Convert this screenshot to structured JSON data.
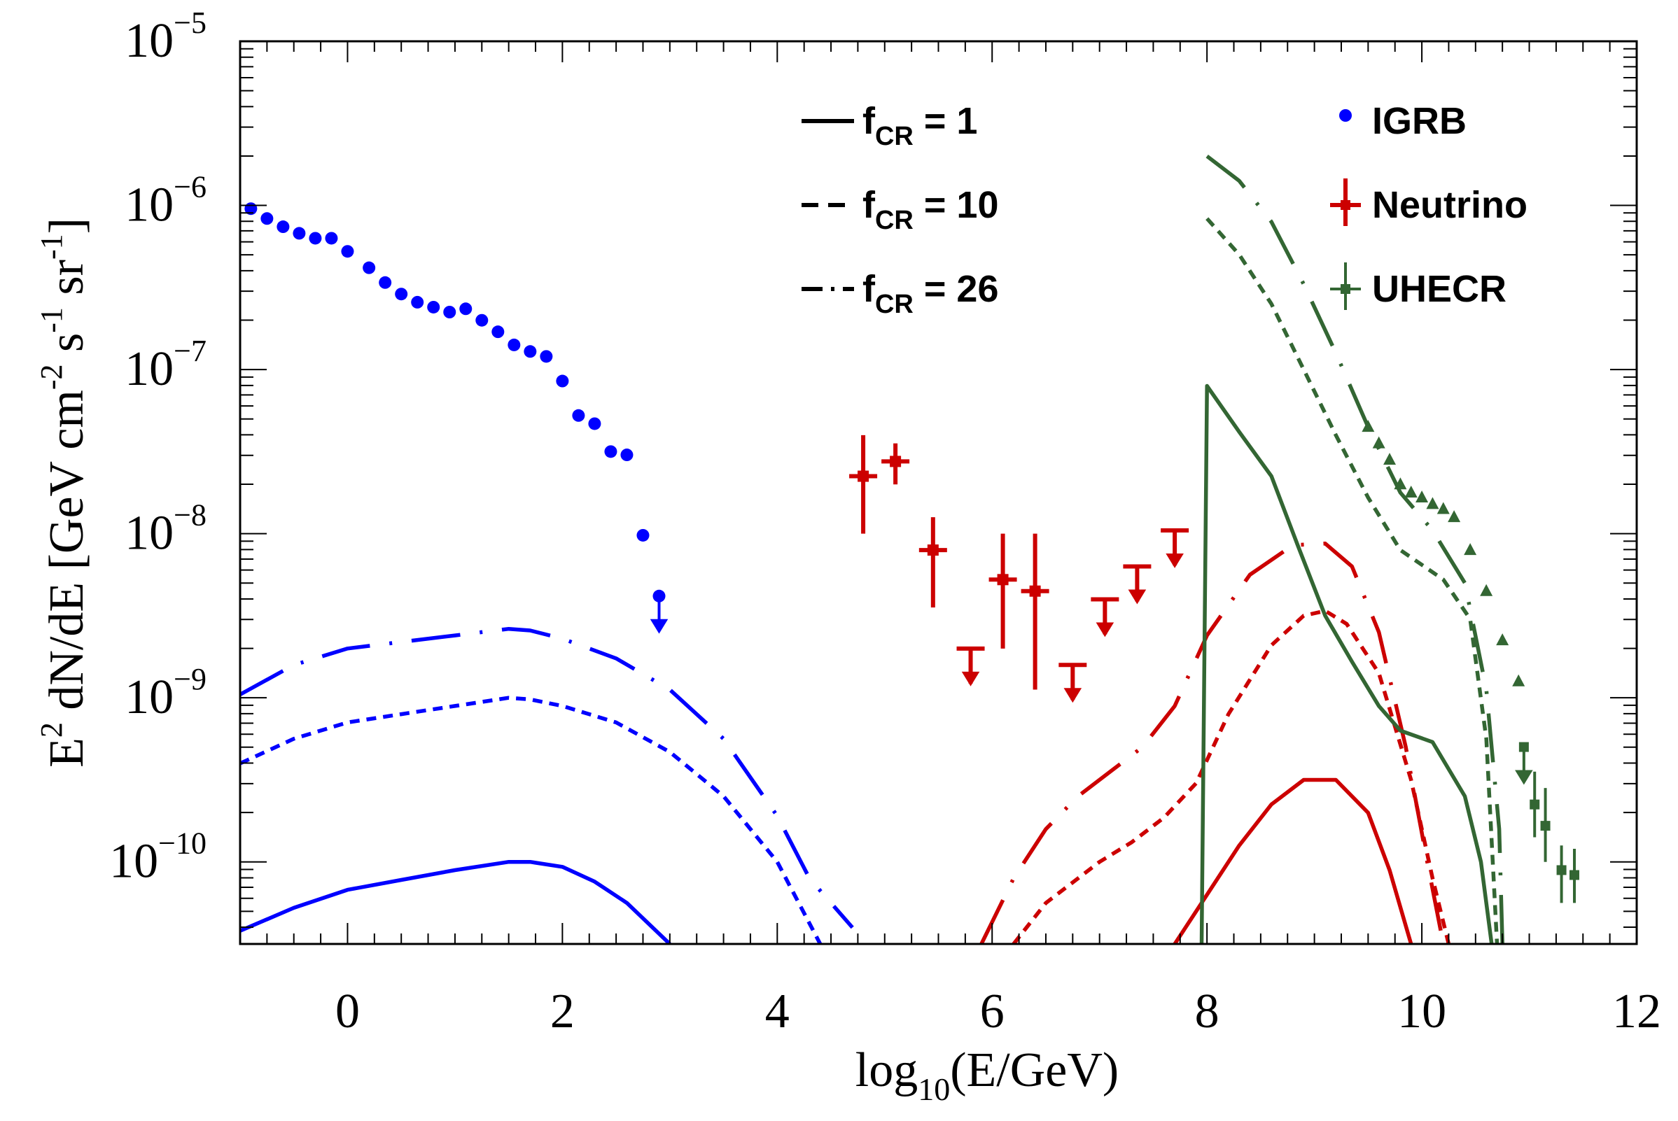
{
  "chart_data": {
    "type": "line",
    "title": "",
    "xlabel": {
      "base": "log",
      "sub": "10",
      "rest": "(E/GeV)"
    },
    "ylabel": {
      "p1": "E",
      "p1sup": "2",
      "p2": " dN/dE [GeV cm",
      "p2sup": "-2",
      "p3": " s",
      "p3sup": "-1",
      "p4": " sr",
      "p4sup": "-1",
      "p5": "]"
    },
    "xlim": [
      -1,
      12
    ],
    "ylim_log10": [
      -10.5,
      -5
    ],
    "x_ticks": [
      {
        "v": 0,
        "label": "0"
      },
      {
        "v": 2,
        "label": "2"
      },
      {
        "v": 4,
        "label": "4"
      },
      {
        "v": 6,
        "label": "6"
      },
      {
        "v": 8,
        "label": "8"
      },
      {
        "v": 10,
        "label": "10"
      },
      {
        "v": 12,
        "label": "12"
      }
    ],
    "y_ticks": [
      {
        "v": -10,
        "base": "10",
        "exp": "−10"
      },
      {
        "v": -9,
        "base": "10",
        "exp": "−9"
      },
      {
        "v": -8,
        "base": "10",
        "exp": "−8"
      },
      {
        "v": -7,
        "base": "10",
        "exp": "−7"
      },
      {
        "v": -6,
        "base": "10",
        "exp": "−6"
      },
      {
        "v": -5,
        "base": "10",
        "exp": "−5"
      }
    ],
    "colors": {
      "gamma": "#0000ff",
      "neutrino": "#cc0000",
      "uhecr": "#336633"
    },
    "style_legend": [
      {
        "style": "solid",
        "label": "f",
        "sub": "CR",
        "rest": " = 1"
      },
      {
        "style": "dashed",
        "label": "f",
        "sub": "CR",
        "rest": " = 10"
      },
      {
        "style": "dashdot",
        "label": "f",
        "sub": "CR",
        "rest": " = 26"
      }
    ],
    "data_legend": [
      {
        "key": "gamma",
        "marker": "dot",
        "label": "IGRB"
      },
      {
        "key": "neutrino",
        "marker": "cross",
        "label": "Neutrino"
      },
      {
        "key": "uhecr",
        "marker": "cross-thin",
        "label": "UHECR"
      }
    ],
    "series": [
      {
        "name": "gamma fCR=1",
        "color": "gamma",
        "style": "solid",
        "points": [
          [
            -1,
            -10.42
          ],
          [
            -0.5,
            -10.28
          ],
          [
            0,
            -10.17
          ],
          [
            0.5,
            -10.11
          ],
          [
            1,
            -10.05
          ],
          [
            1.5,
            -10.0
          ],
          [
            1.7,
            -10.0
          ],
          [
            2,
            -10.03
          ],
          [
            2.3,
            -10.12
          ],
          [
            2.6,
            -10.25
          ],
          [
            3.0,
            -10.5
          ]
        ]
      },
      {
        "name": "gamma fCR=10",
        "color": "gamma",
        "style": "dashed",
        "points": [
          [
            -1,
            -9.4
          ],
          [
            -0.5,
            -9.25
          ],
          [
            0,
            -9.15
          ],
          [
            0.5,
            -9.1
          ],
          [
            1,
            -9.05
          ],
          [
            1.5,
            -9.0
          ],
          [
            1.7,
            -9.01
          ],
          [
            2,
            -9.05
          ],
          [
            2.5,
            -9.15
          ],
          [
            3,
            -9.33
          ],
          [
            3.5,
            -9.6
          ],
          [
            4,
            -10.0
          ],
          [
            4.4,
            -10.5
          ]
        ]
      },
      {
        "name": "gamma fCR=26",
        "color": "gamma",
        "style": "dashdot",
        "points": [
          [
            -1,
            -8.98
          ],
          [
            -0.5,
            -8.8
          ],
          [
            0,
            -8.7
          ],
          [
            0.5,
            -8.66
          ],
          [
            1,
            -8.62
          ],
          [
            1.5,
            -8.58
          ],
          [
            1.7,
            -8.59
          ],
          [
            2,
            -8.64
          ],
          [
            2.5,
            -8.76
          ],
          [
            3,
            -8.95
          ],
          [
            3.5,
            -9.25
          ],
          [
            4,
            -9.72
          ],
          [
            4.3,
            -10.1
          ],
          [
            4.7,
            -10.4
          ]
        ]
      },
      {
        "name": "neutrino fCR=1",
        "color": "neutrino",
        "style": "solid",
        "points": [
          [
            7.7,
            -10.5
          ],
          [
            8,
            -10.2
          ],
          [
            8.3,
            -9.9
          ],
          [
            8.6,
            -9.65
          ],
          [
            8.9,
            -9.5
          ],
          [
            9.2,
            -9.5
          ],
          [
            9.5,
            -9.7
          ],
          [
            9.7,
            -10.05
          ],
          [
            9.9,
            -10.5
          ]
        ]
      },
      {
        "name": "neutrino fCR=10",
        "color": "neutrino",
        "style": "dashed",
        "points": [
          [
            6.2,
            -10.5
          ],
          [
            6.5,
            -10.25
          ],
          [
            6.8,
            -10.1
          ],
          [
            7,
            -10.0
          ],
          [
            7.3,
            -9.88
          ],
          [
            7.6,
            -9.73
          ],
          [
            7.9,
            -9.52
          ],
          [
            8.2,
            -9.1
          ],
          [
            8.6,
            -8.68
          ],
          [
            8.9,
            -8.5
          ],
          [
            9.1,
            -8.47
          ],
          [
            9.3,
            -8.55
          ],
          [
            9.6,
            -8.85
          ],
          [
            9.9,
            -9.5
          ],
          [
            10.1,
            -10.1
          ],
          [
            10.25,
            -10.5
          ]
        ]
      },
      {
        "name": "neutrino fCR=26",
        "color": "neutrino",
        "style": "dashdot",
        "points": [
          [
            5.9,
            -10.5
          ],
          [
            6.2,
            -10.1
          ],
          [
            6.5,
            -9.8
          ],
          [
            6.8,
            -9.6
          ],
          [
            7.1,
            -9.45
          ],
          [
            7.4,
            -9.3
          ],
          [
            7.7,
            -9.05
          ],
          [
            8.0,
            -8.62
          ],
          [
            8.4,
            -8.25
          ],
          [
            8.8,
            -8.07
          ],
          [
            9.1,
            -8.06
          ],
          [
            9.35,
            -8.2
          ],
          [
            9.6,
            -8.6
          ],
          [
            9.85,
            -9.3
          ],
          [
            10.05,
            -10.0
          ],
          [
            10.2,
            -10.5
          ]
        ]
      },
      {
        "name": "uhecr fCR=1",
        "color": "uhecr",
        "style": "solid",
        "points": [
          [
            7.95,
            -10.5
          ],
          [
            8.0,
            -7.1
          ],
          [
            8.3,
            -7.38
          ],
          [
            8.6,
            -7.65
          ],
          [
            8.85,
            -8.08
          ],
          [
            9.1,
            -8.5
          ],
          [
            9.35,
            -8.78
          ],
          [
            9.6,
            -9.05
          ],
          [
            9.8,
            -9.2
          ],
          [
            10.1,
            -9.27
          ],
          [
            10.4,
            -9.6
          ],
          [
            10.55,
            -10.0
          ],
          [
            10.65,
            -10.5
          ]
        ]
      },
      {
        "name": "uhecr fCR=10",
        "color": "uhecr",
        "style": "dashed",
        "points": [
          [
            8.0,
            -6.08
          ],
          [
            8.3,
            -6.3
          ],
          [
            8.6,
            -6.6
          ],
          [
            8.9,
            -7.0
          ],
          [
            9.2,
            -7.4
          ],
          [
            9.5,
            -7.78
          ],
          [
            9.8,
            -8.1
          ],
          [
            10.2,
            -8.28
          ],
          [
            10.45,
            -8.52
          ],
          [
            10.6,
            -9.25
          ],
          [
            10.7,
            -10.5
          ]
        ]
      },
      {
        "name": "uhecr fCR=26",
        "color": "uhecr",
        "style": "dashdot",
        "points": [
          [
            8.0,
            -5.7
          ],
          [
            8.3,
            -5.85
          ],
          [
            8.6,
            -6.1
          ],
          [
            8.9,
            -6.48
          ],
          [
            9.2,
            -6.9
          ],
          [
            9.5,
            -7.35
          ],
          [
            9.8,
            -7.75
          ],
          [
            10.1,
            -7.98
          ],
          [
            10.4,
            -8.3
          ],
          [
            10.6,
            -8.95
          ],
          [
            10.72,
            -9.8
          ],
          [
            10.75,
            -10.5
          ]
        ]
      }
    ],
    "igrb_points": [
      [
        -0.9,
        -6.02
      ],
      [
        -0.75,
        -6.08
      ],
      [
        -0.6,
        -6.13
      ],
      [
        -0.45,
        -6.17
      ],
      [
        -0.3,
        -6.2
      ],
      [
        -0.15,
        -6.2
      ],
      [
        0.0,
        -6.28
      ],
      [
        0.2,
        -6.38
      ],
      [
        0.35,
        -6.47
      ],
      [
        0.5,
        -6.54
      ],
      [
        0.65,
        -6.59
      ],
      [
        0.8,
        -6.62
      ],
      [
        0.95,
        -6.65
      ],
      [
        1.1,
        -6.63
      ],
      [
        1.25,
        -6.7
      ],
      [
        1.4,
        -6.77
      ],
      [
        1.55,
        -6.85
      ],
      [
        1.7,
        -6.89
      ],
      [
        1.85,
        -6.92
      ],
      [
        2.0,
        -7.07
      ],
      [
        2.15,
        -7.28
      ],
      [
        2.3,
        -7.33
      ],
      [
        2.45,
        -7.5
      ],
      [
        2.6,
        -7.52
      ],
      [
        2.75,
        -8.01
      ]
    ],
    "igrb_limits": [
      [
        2.9,
        -8.38
      ]
    ],
    "neutrino_points": [
      [
        4.8,
        -7.65,
        -8.0,
        -7.4
      ],
      [
        5.1,
        -7.56,
        -7.7,
        -7.45
      ],
      [
        5.45,
        -8.1,
        -8.45,
        -7.9
      ],
      [
        6.1,
        -8.28,
        -8.7,
        -8.0
      ],
      [
        6.4,
        -8.35,
        -8.95,
        -8.0
      ]
    ],
    "neutrino_limits": [
      [
        5.8,
        -8.7
      ],
      [
        6.75,
        -8.8
      ],
      [
        7.05,
        -8.4
      ],
      [
        7.35,
        -8.2
      ],
      [
        7.7,
        -7.98
      ]
    ],
    "uhecr_triangles": [
      [
        9.5,
        -7.35
      ],
      [
        9.6,
        -7.45
      ],
      [
        9.7,
        -7.55
      ],
      [
        9.8,
        -7.7
      ],
      [
        9.9,
        -7.75
      ],
      [
        10.0,
        -7.78
      ],
      [
        10.1,
        -7.82
      ],
      [
        10.2,
        -7.85
      ],
      [
        10.3,
        -7.9
      ],
      [
        10.45,
        -8.1
      ],
      [
        10.6,
        -8.35
      ],
      [
        10.75,
        -8.65
      ],
      [
        10.9,
        -8.9
      ]
    ],
    "uhecr_points": [
      [
        11.05,
        -9.65,
        -9.85,
        -9.45
      ],
      [
        11.15,
        -9.78,
        -10.0,
        -9.55
      ],
      [
        11.3,
        -10.05,
        -10.25,
        -9.9
      ],
      [
        11.42,
        -10.08,
        -10.25,
        -9.92
      ]
    ],
    "uhecr_limits": [
      [
        10.95,
        -9.3
      ]
    ]
  }
}
